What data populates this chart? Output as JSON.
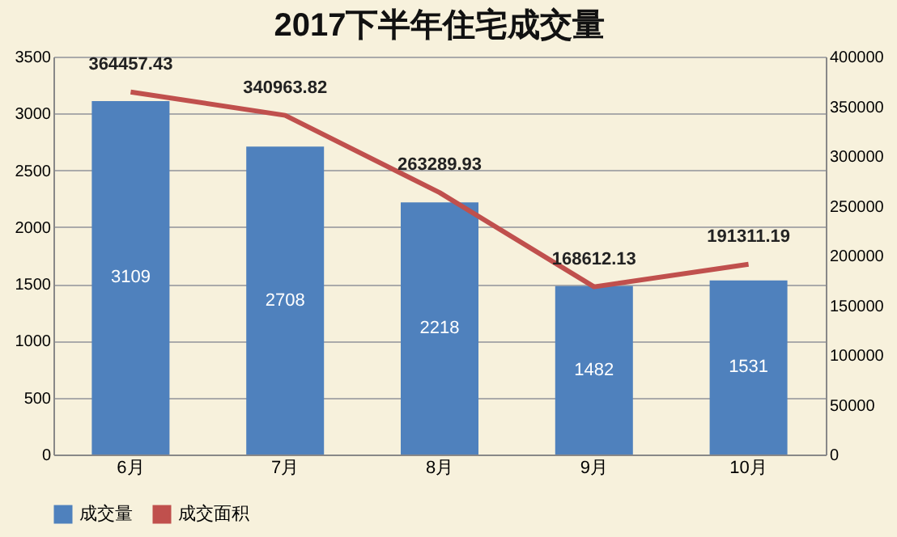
{
  "chart_data": {
    "type": "bar",
    "title": "2017下半年住宅成交量",
    "categories": [
      "6月",
      "7月",
      "8月",
      "9月",
      "10月"
    ],
    "series": [
      {
        "name": "成交量",
        "color": "#4f81bd",
        "values": [
          3109,
          2708,
          2218,
          1482,
          1531
        ]
      },
      {
        "name": "成交面积",
        "type": "line",
        "color": "#c0504d",
        "axis": "y2",
        "values": [
          364457.43,
          340963.82,
          263289.93,
          168612.13,
          191311.19
        ]
      }
    ],
    "ylim": [
      0,
      3500
    ],
    "yticks": [
      0,
      500,
      1000,
      1500,
      2000,
      2500,
      3000,
      3500
    ],
    "y2lim": [
      0,
      400000
    ],
    "y2ticks": [
      0,
      50000,
      100000,
      150000,
      200000,
      250000,
      300000,
      350000,
      400000
    ],
    "grid": "y",
    "legend": "bottom",
    "data_labels": true
  }
}
